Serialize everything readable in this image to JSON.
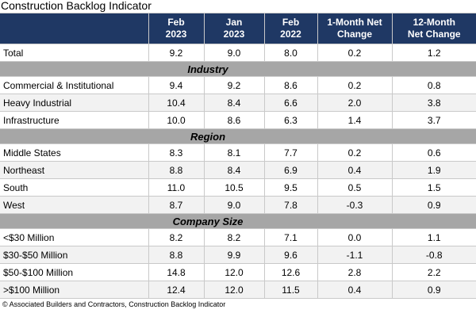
{
  "title": "Construction Backlog Indicator",
  "footer_note": "© Associated Builders and Contractors, Construction Backlog Indicator",
  "colors": {
    "header_bg": "#1F3864",
    "header_text": "#FFFFFF",
    "section_band_bg": "#A6A6A6",
    "row_alt_bg": "#F2F2F2",
    "grid_line": "#C9C9C9",
    "text": "#000000"
  },
  "chart_data": {
    "type": "table",
    "title": "Construction Backlog Indicator",
    "columns": [
      "Feb 2023",
      "Jan 2023",
      "Feb 2022",
      "1-Month Net Change",
      "12-Month Net Change"
    ],
    "column_header_lines": [
      [
        "Feb",
        "2023"
      ],
      [
        "Jan",
        "2023"
      ],
      [
        "Feb",
        "2022"
      ],
      [
        "1-Month Net",
        "Change"
      ],
      [
        "12-Month",
        "Net Change"
      ]
    ],
    "sections": [
      {
        "name": null,
        "rows": [
          {
            "label": "Total",
            "values": [
              9.2,
              9.0,
              8.0,
              0.2,
              1.2
            ]
          }
        ]
      },
      {
        "name": "Industry",
        "rows": [
          {
            "label": "Commercial & Institutional",
            "values": [
              9.4,
              9.2,
              8.6,
              0.2,
              0.8
            ]
          },
          {
            "label": "Heavy Industrial",
            "values": [
              10.4,
              8.4,
              6.6,
              2.0,
              3.8
            ]
          },
          {
            "label": "Infrastructure",
            "values": [
              10.0,
              8.6,
              6.3,
              1.4,
              3.7
            ]
          }
        ]
      },
      {
        "name": "Region",
        "rows": [
          {
            "label": "Middle States",
            "values": [
              8.3,
              8.1,
              7.7,
              0.2,
              0.6
            ]
          },
          {
            "label": "Northeast",
            "values": [
              8.8,
              8.4,
              6.9,
              0.4,
              1.9
            ]
          },
          {
            "label": "South",
            "values": [
              11.0,
              10.5,
              9.5,
              0.5,
              1.5
            ]
          },
          {
            "label": "West",
            "values": [
              8.7,
              9.0,
              7.8,
              -0.3,
              0.9
            ]
          }
        ]
      },
      {
        "name": "Company Size",
        "rows": [
          {
            "label": "<$30 Million",
            "values": [
              8.2,
              8.2,
              7.1,
              0.0,
              1.1
            ]
          },
          {
            "label": "$30-$50 Million",
            "values": [
              8.8,
              9.9,
              9.6,
              -1.1,
              -0.8
            ]
          },
          {
            "label": "$50-$100 Million",
            "values": [
              14.8,
              12.0,
              12.6,
              2.8,
              2.2
            ]
          },
          {
            "label": ">$100 Million",
            "values": [
              12.4,
              12.0,
              11.5,
              0.4,
              0.9
            ]
          }
        ]
      }
    ]
  }
}
